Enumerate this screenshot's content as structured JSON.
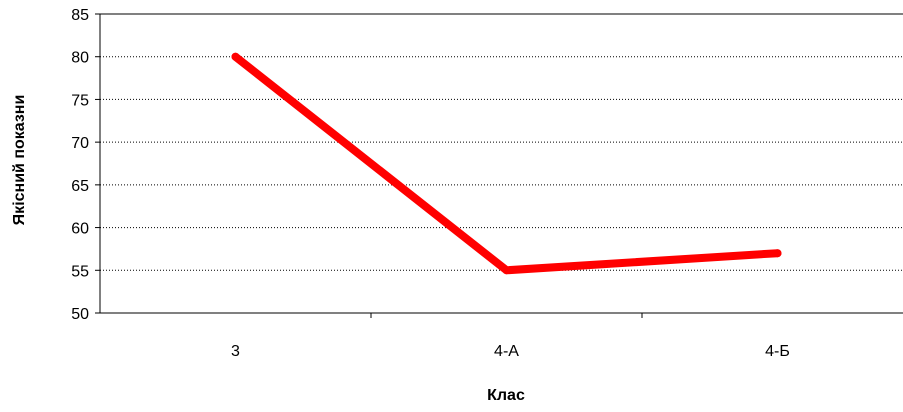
{
  "chart_data": {
    "type": "line",
    "categories": [
      "3",
      "4-А",
      "4-Б"
    ],
    "series": [
      {
        "values": [
          80,
          55,
          57
        ],
        "color": "#ff0000"
      }
    ],
    "title": "",
    "xlabel": "Клас",
    "ylabel": "Якісний показни",
    "ylim": [
      50,
      85
    ],
    "yticks": [
      50,
      55,
      60,
      65,
      70,
      75,
      80,
      85
    ],
    "grid": true,
    "grid_style": "dotted",
    "legend": "none"
  }
}
